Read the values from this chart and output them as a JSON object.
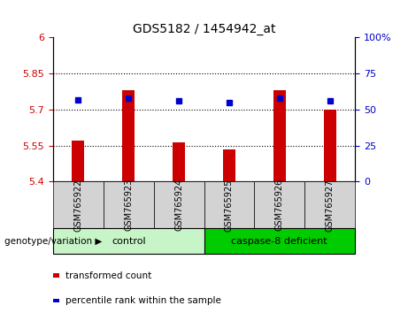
{
  "title": "GDS5182 / 1454942_at",
  "samples": [
    "GSM765922",
    "GSM765923",
    "GSM765924",
    "GSM765925",
    "GSM765926",
    "GSM765927"
  ],
  "transformed_counts": [
    5.57,
    5.78,
    5.565,
    5.535,
    5.78,
    5.7
  ],
  "percentile_ranks": [
    57,
    58,
    56,
    55,
    58,
    56
  ],
  "ylim_left": [
    5.4,
    6.0
  ],
  "ylim_right": [
    0,
    100
  ],
  "yticks_left": [
    5.4,
    5.55,
    5.7,
    5.85,
    6.0
  ],
  "ytick_labels_left": [
    "5.4",
    "5.55",
    "5.7",
    "5.85",
    "6"
  ],
  "yticks_right": [
    0,
    25,
    50,
    75,
    100
  ],
  "ytick_labels_right": [
    "0",
    "25",
    "50",
    "75",
    "100%"
  ],
  "hlines": [
    5.55,
    5.7,
    5.85
  ],
  "bar_color": "#cc0000",
  "dot_color": "#0000cc",
  "bar_bottom": 5.4,
  "bar_width": 0.25,
  "groups": [
    {
      "label": "control",
      "indices": [
        0,
        1,
        2
      ],
      "color_light": "#c8f5c8",
      "color_dark": "#90ee90"
    },
    {
      "label": "caspase-8 deficient",
      "indices": [
        3,
        4,
        5
      ],
      "color_light": "#90ee90",
      "color_dark": "#00cc00"
    }
  ],
  "group_label": "genotype/variation",
  "legend_items": [
    {
      "label": "transformed count",
      "color": "#cc0000"
    },
    {
      "label": "percentile rank within the sample",
      "color": "#0000cc"
    }
  ],
  "tick_label_color_left": "#cc0000",
  "tick_label_color_right": "#0000cc",
  "xtick_bg_color": "#d3d3d3",
  "plot_bg": "#ffffff",
  "fig_bg": "#ffffff"
}
